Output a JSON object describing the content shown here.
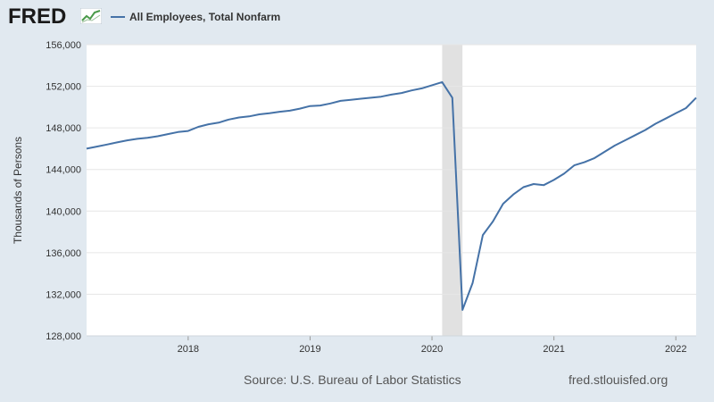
{
  "header": {
    "logo_text": "FRED",
    "logo_icon": "chart-trend-icon",
    "legend_label": "All Employees, Total Nonfarm"
  },
  "colors": {
    "background": "#e1e9f0",
    "plot_background": "#ffffff",
    "series": "#4572a7",
    "recession": "#e1e1e1",
    "grid": "#e6e6e6"
  },
  "footer": {
    "source": "Source: U.S. Bureau of Labor Statistics",
    "site": "fred.stlouisfed.org"
  },
  "chart_data": {
    "type": "line",
    "title": "",
    "xlabel": "",
    "ylabel": "Thousands of Persons",
    "ylim": [
      128000,
      156000
    ],
    "xlim": [
      "2017-03",
      "2022-03"
    ],
    "yticks": [
      128000,
      132000,
      136000,
      140000,
      144000,
      148000,
      152000,
      156000
    ],
    "ytick_labels": [
      "128,000",
      "132,000",
      "136,000",
      "140,000",
      "144,000",
      "148,000",
      "152,000",
      "156,000"
    ],
    "xticks": [
      "2018-01",
      "2019-01",
      "2020-01",
      "2021-01",
      "2022-01"
    ],
    "xtick_labels": [
      "2018",
      "2019",
      "2020",
      "2021",
      "2022"
    ],
    "grid": "horizontal",
    "recession_shading": [
      [
        "2020-02",
        "2020-04"
      ]
    ],
    "series": [
      {
        "name": "All Employees, Total Nonfarm",
        "x": [
          "2017-03",
          "2017-04",
          "2017-05",
          "2017-06",
          "2017-07",
          "2017-08",
          "2017-09",
          "2017-10",
          "2017-11",
          "2017-12",
          "2018-01",
          "2018-02",
          "2018-03",
          "2018-04",
          "2018-05",
          "2018-06",
          "2018-07",
          "2018-08",
          "2018-09",
          "2018-10",
          "2018-11",
          "2018-12",
          "2019-01",
          "2019-02",
          "2019-03",
          "2019-04",
          "2019-05",
          "2019-06",
          "2019-07",
          "2019-08",
          "2019-09",
          "2019-10",
          "2019-11",
          "2019-12",
          "2020-01",
          "2020-02",
          "2020-03",
          "2020-04",
          "2020-05",
          "2020-06",
          "2020-07",
          "2020-08",
          "2020-09",
          "2020-10",
          "2020-11",
          "2020-12",
          "2021-01",
          "2021-02",
          "2021-03",
          "2021-04",
          "2021-05",
          "2021-06",
          "2021-07",
          "2021-08",
          "2021-09",
          "2021-10",
          "2021-11",
          "2021-12",
          "2022-01",
          "2022-02",
          "2022-03"
        ],
        "values": [
          146000,
          146200,
          146400,
          146600,
          146800,
          146950,
          147050,
          147200,
          147400,
          147600,
          147700,
          148100,
          148350,
          148500,
          148800,
          149000,
          149100,
          149300,
          149400,
          149550,
          149650,
          149850,
          150100,
          150150,
          150350,
          150600,
          150700,
          150800,
          150900,
          151000,
          151200,
          151350,
          151600,
          151800,
          152100,
          152400,
          150900,
          130500,
          133100,
          137700,
          139000,
          140700,
          141600,
          142300,
          142600,
          142500,
          143000,
          143600,
          144400,
          144700,
          145100,
          145700,
          146300,
          146800,
          147300,
          147800,
          148400,
          148900,
          149400,
          149900,
          150900
        ]
      }
    ]
  }
}
